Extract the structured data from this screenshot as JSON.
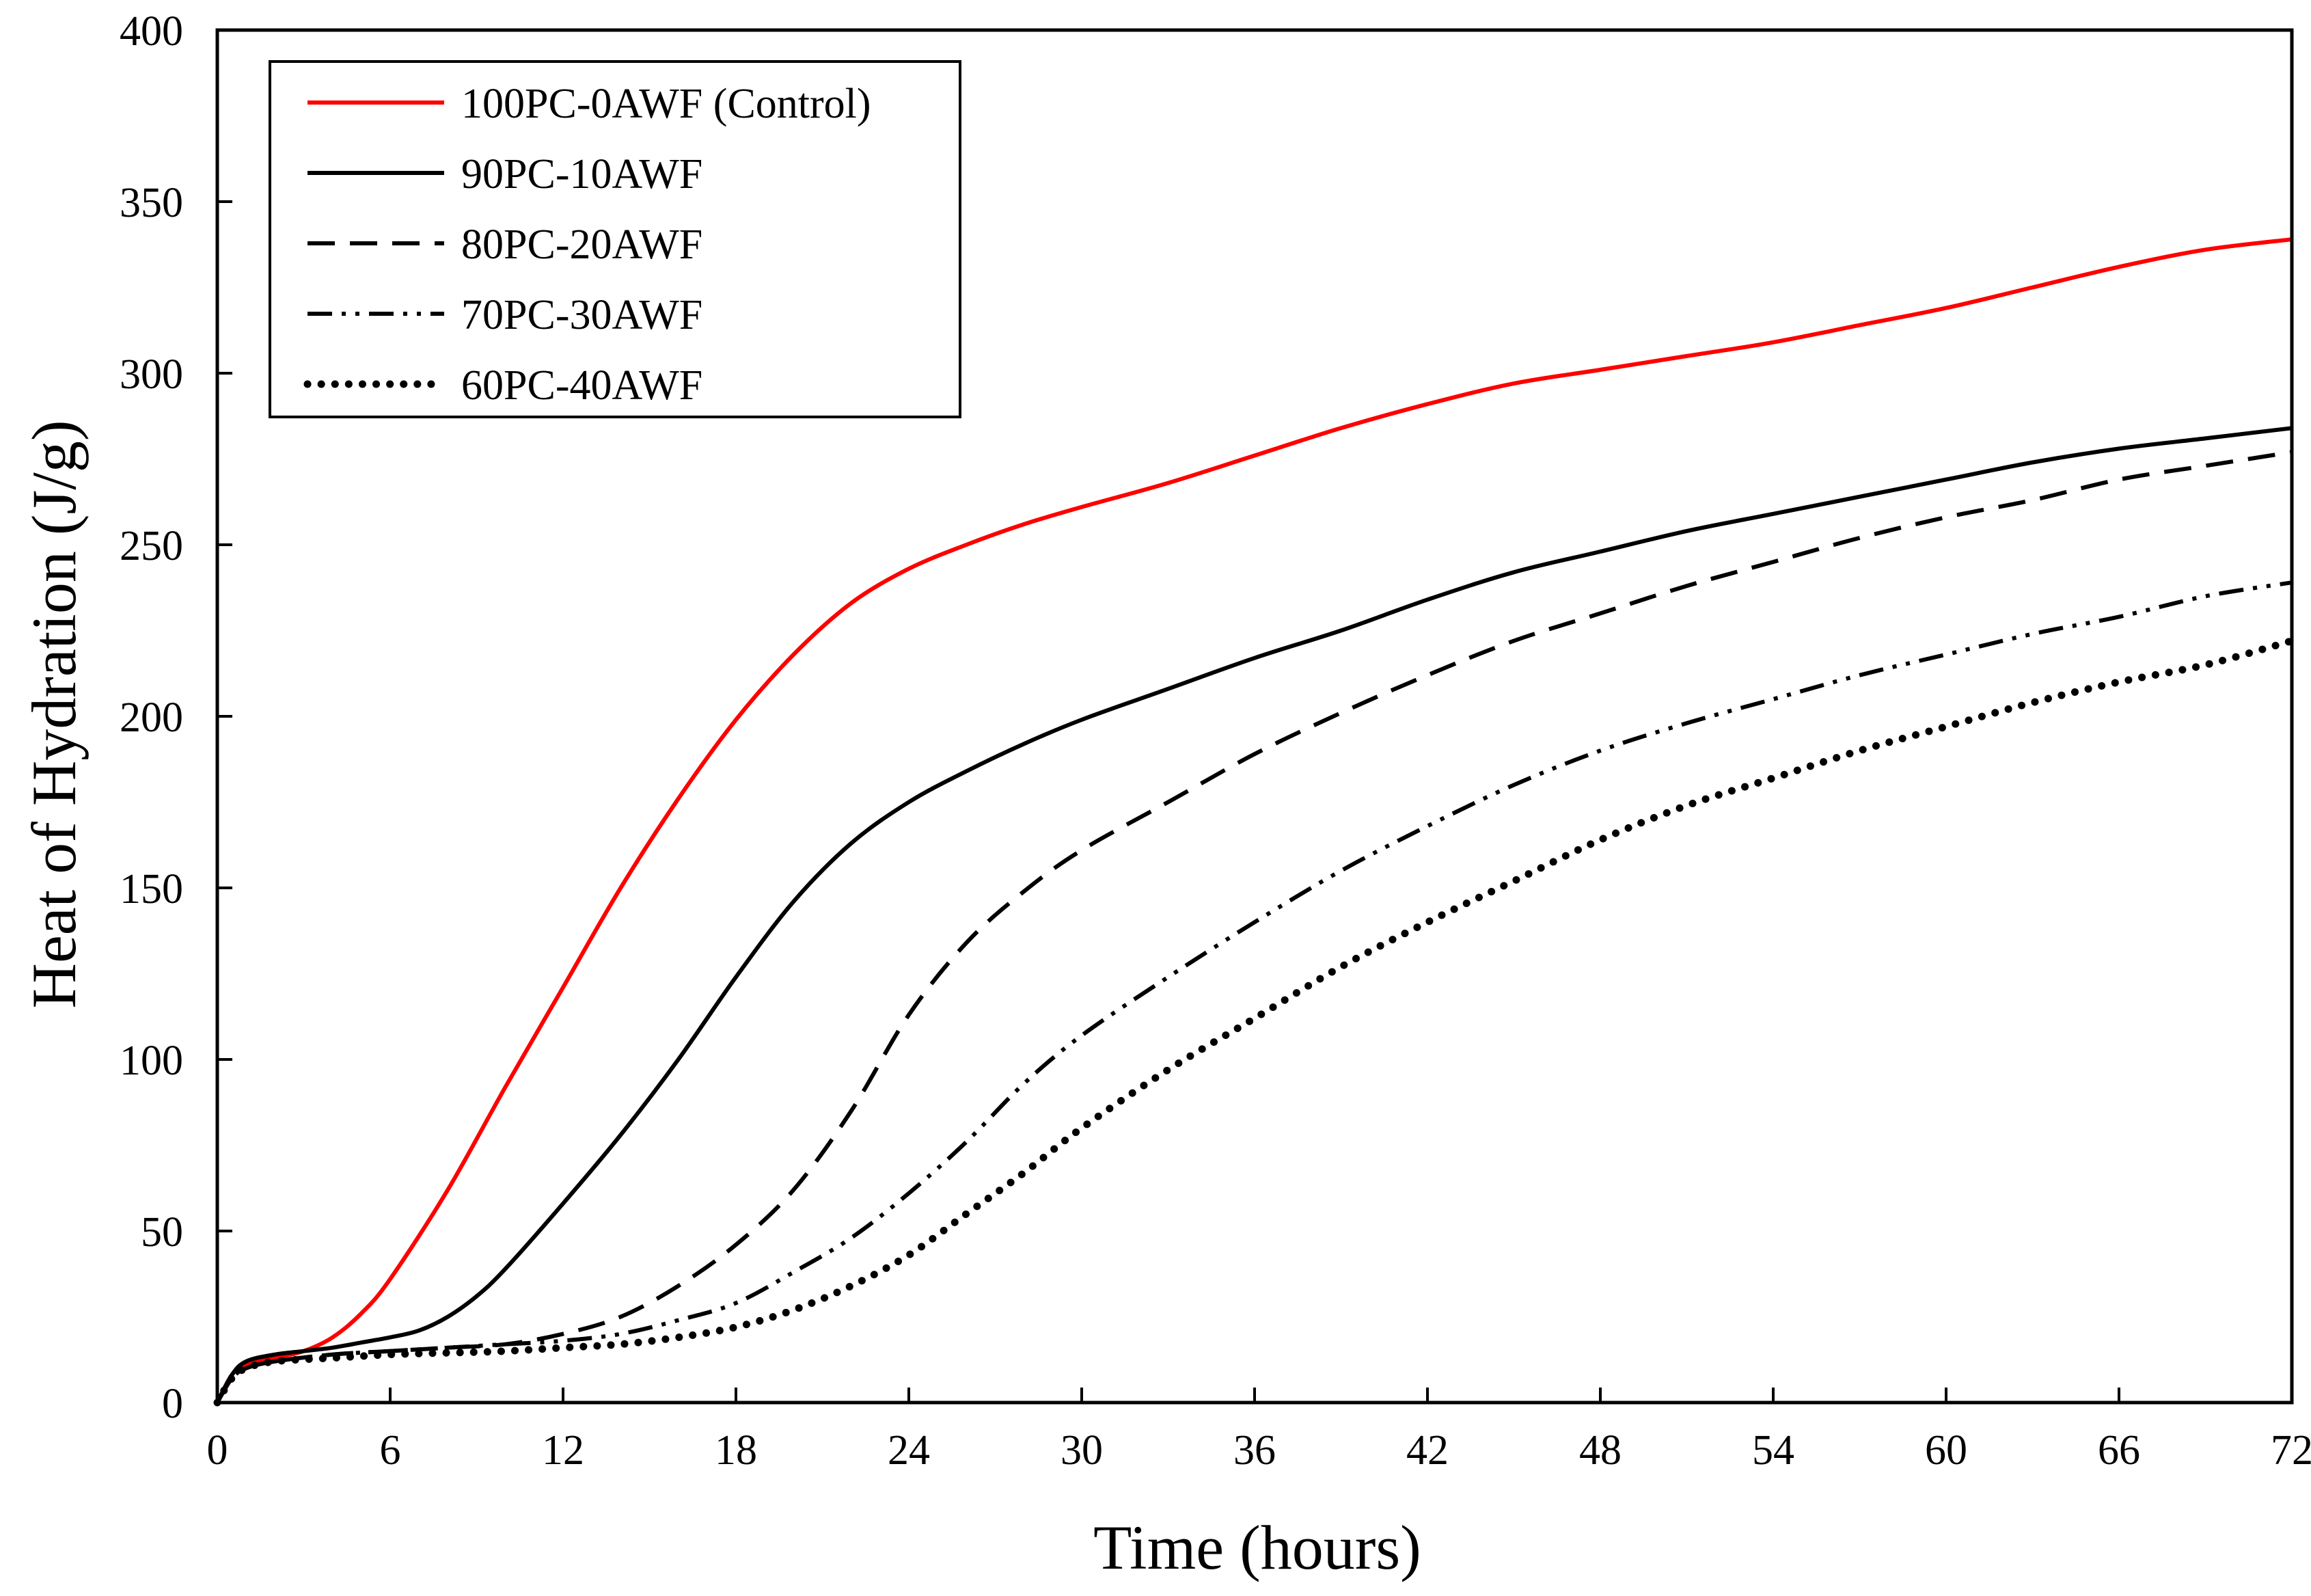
{
  "chart_data": {
    "type": "line",
    "title": "",
    "xlabel": "Time (hours)",
    "ylabel": "Heat of  Hydration (J/g)",
    "xlim": [
      0,
      72
    ],
    "ylim": [
      0,
      400
    ],
    "xticks": [
      0,
      6,
      12,
      18,
      24,
      30,
      36,
      42,
      48,
      54,
      60,
      66,
      72
    ],
    "yticks": [
      0,
      50,
      100,
      150,
      200,
      250,
      300,
      350,
      400
    ],
    "grid": false,
    "legend_position": "top-left",
    "series": [
      {
        "name": "100PC-0AWF (Control)",
        "color": "#ff0000",
        "style": "solid",
        "x": [
          0,
          0.5,
          1,
          2,
          3,
          4,
          5,
          6,
          8,
          10,
          12,
          14,
          16,
          18,
          20,
          22,
          24,
          26,
          28,
          30,
          33,
          36,
          39,
          42,
          45,
          48,
          51,
          54,
          57,
          60,
          63,
          66,
          69,
          72
        ],
        "y": [
          0,
          8,
          11,
          13,
          15,
          19,
          26,
          36,
          62,
          92,
          121,
          150,
          176,
          199,
          218,
          233,
          243,
          250,
          256,
          261,
          268,
          276,
          284,
          291,
          297,
          301,
          305,
          309,
          314,
          319,
          325,
          331,
          336,
          339
        ]
      },
      {
        "name": "90PC-10AWF",
        "color": "#000000",
        "style": "solid",
        "x": [
          0,
          0.5,
          1,
          2,
          3,
          4,
          5,
          6,
          7,
          8,
          9,
          10,
          12,
          14,
          16,
          18,
          20,
          22,
          24,
          26,
          28,
          30,
          33,
          36,
          39,
          42,
          45,
          48,
          51,
          54,
          57,
          60,
          63,
          66,
          69,
          72
        ],
        "y": [
          0,
          8,
          12,
          14,
          15,
          16,
          17.5,
          19,
          21,
          25,
          31,
          39,
          58,
          78,
          100,
          124,
          146,
          163,
          175,
          184,
          192,
          199,
          208,
          217,
          225,
          234,
          242,
          248,
          254,
          259,
          264,
          269,
          274,
          278,
          281,
          284
        ]
      },
      {
        "name": "80PC-20AWF",
        "color": "#000000",
        "style": "dashed",
        "x": [
          0,
          0.5,
          1,
          2,
          4,
          6,
          8,
          10,
          12,
          14,
          16,
          18,
          20,
          22,
          24,
          26,
          28,
          30,
          33,
          36,
          39,
          42,
          45,
          48,
          51,
          54,
          57,
          60,
          63,
          66,
          69,
          72
        ],
        "y": [
          0,
          7,
          10,
          12,
          14,
          15,
          16,
          17,
          20,
          25,
          34,
          46,
          62,
          85,
          113,
          134,
          149,
          161,
          175,
          189,
          201,
          212,
          222,
          230,
          238,
          245,
          252,
          258,
          263,
          269,
          273,
          277
        ]
      },
      {
        "name": "70PC-30AWF",
        "color": "#000000",
        "style": "dashdotdot",
        "x": [
          0,
          0.5,
          1,
          2,
          4,
          6,
          8,
          10,
          12,
          14,
          16,
          18,
          20,
          22,
          24,
          26,
          28,
          30,
          33,
          36,
          39,
          42,
          45,
          48,
          51,
          54,
          57,
          60,
          63,
          66,
          69,
          72
        ],
        "y": [
          0,
          7,
          10,
          12,
          14,
          15,
          16,
          17,
          18,
          20,
          24,
          29,
          38,
          48,
          61,
          76,
          93,
          107,
          124,
          140,
          155,
          168,
          180,
          190,
          198,
          205,
          212,
          218,
          224,
          229,
          235,
          239
        ]
      },
      {
        "name": "60PC-40AWF",
        "color": "#000000",
        "style": "dotted",
        "x": [
          0,
          0.5,
          1,
          2,
          4,
          6,
          8,
          10,
          12,
          14,
          16,
          18,
          20,
          22,
          24,
          26,
          28,
          30,
          33,
          36,
          39,
          42,
          45,
          48,
          51,
          54,
          57,
          60,
          63,
          66,
          69,
          72
        ],
        "y": [
          0,
          7,
          10,
          12,
          13,
          14,
          14.5,
          15,
          16,
          17,
          19,
          22,
          27,
          34,
          43,
          55,
          67,
          80,
          97,
          112,
          127,
          140,
          152,
          164,
          174,
          182,
          190,
          197,
          204,
          210,
          215,
          222
        ]
      }
    ]
  }
}
